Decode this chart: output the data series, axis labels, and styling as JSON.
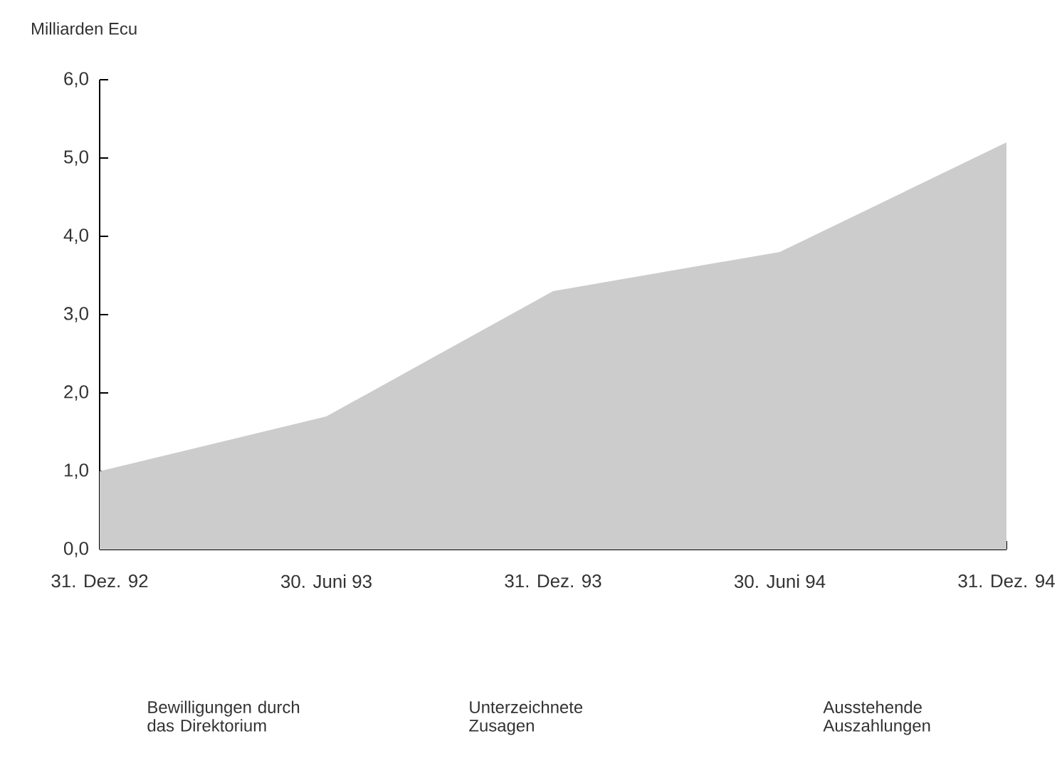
{
  "chart_data": {
    "type": "area",
    "ylabel": "Milliarden Ecu",
    "categories": [
      "31. Dez. 92",
      "30. Juni 93",
      "31. Dez. 93",
      "30. Juni 94",
      "31. Dez. 94"
    ],
    "values": [
      1.0,
      1.7,
      3.3,
      3.8,
      5.2
    ],
    "color": "#cccccc",
    "ylim": [
      0,
      6
    ],
    "yticks": [
      {
        "value": 0,
        "label": "0,0"
      },
      {
        "value": 1,
        "label": "1,0"
      },
      {
        "value": 2,
        "label": "2,0"
      },
      {
        "value": 3,
        "label": "3,0"
      },
      {
        "value": 4,
        "label": "4,0"
      },
      {
        "value": 5,
        "label": "5,0"
      },
      {
        "value": 6,
        "label": "6,0"
      }
    ],
    "grid": false,
    "annotations": [
      "Bewilligungen durch das Direktorium",
      "Unterzeichnete Zusagen",
      "Ausstehende Auszahlungen"
    ]
  }
}
